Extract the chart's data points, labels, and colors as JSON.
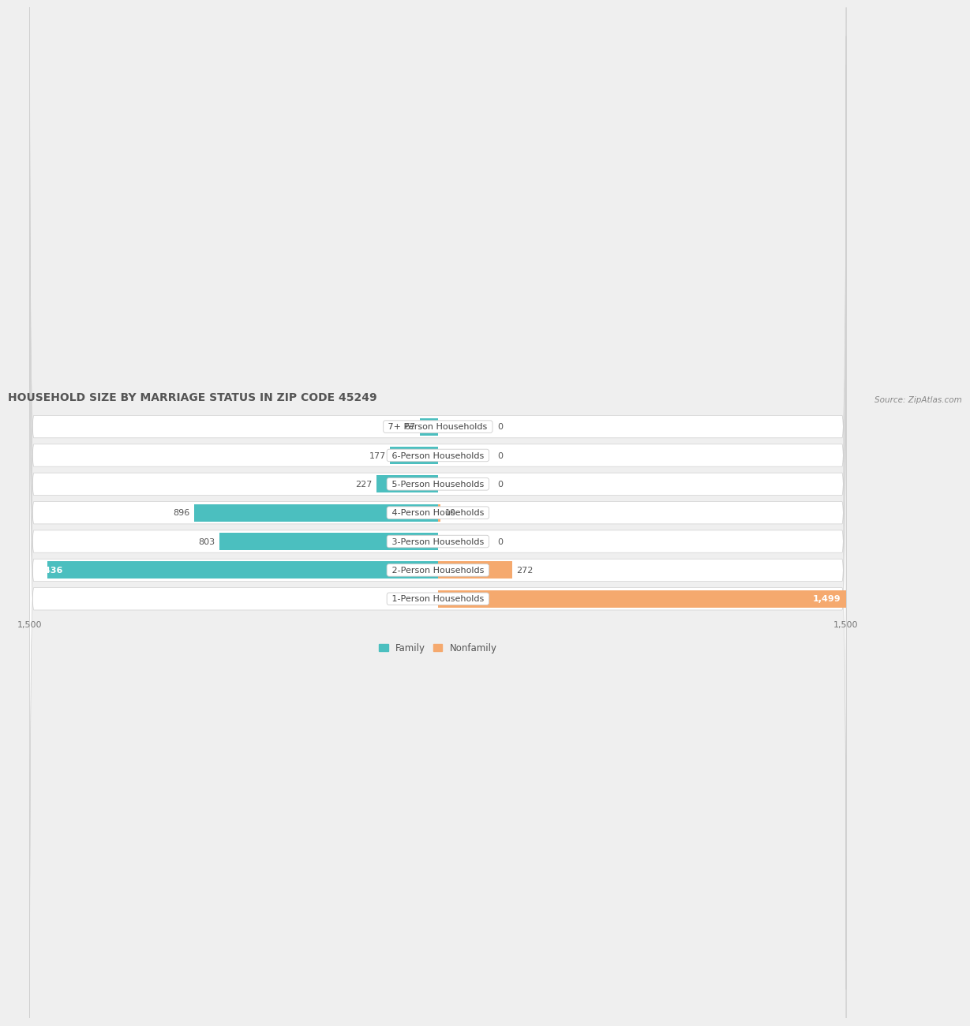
{
  "title": "HOUSEHOLD SIZE BY MARRIAGE STATUS IN ZIP CODE 45249",
  "source": "Source: ZipAtlas.com",
  "categories": [
    "7+ Person Households",
    "6-Person Households",
    "5-Person Households",
    "4-Person Households",
    "3-Person Households",
    "2-Person Households",
    "1-Person Households"
  ],
  "family_values": [
    67,
    177,
    227,
    896,
    803,
    1436,
    0
  ],
  "nonfamily_values": [
    0,
    0,
    0,
    10,
    0,
    272,
    1499
  ],
  "family_color": "#4BBFBF",
  "nonfamily_color": "#F5A96E",
  "max_val": 1500,
  "bg_color": "#efefef",
  "title_fontsize": 10,
  "source_fontsize": 7.5,
  "label_fontsize": 8,
  "tick_fontsize": 8
}
